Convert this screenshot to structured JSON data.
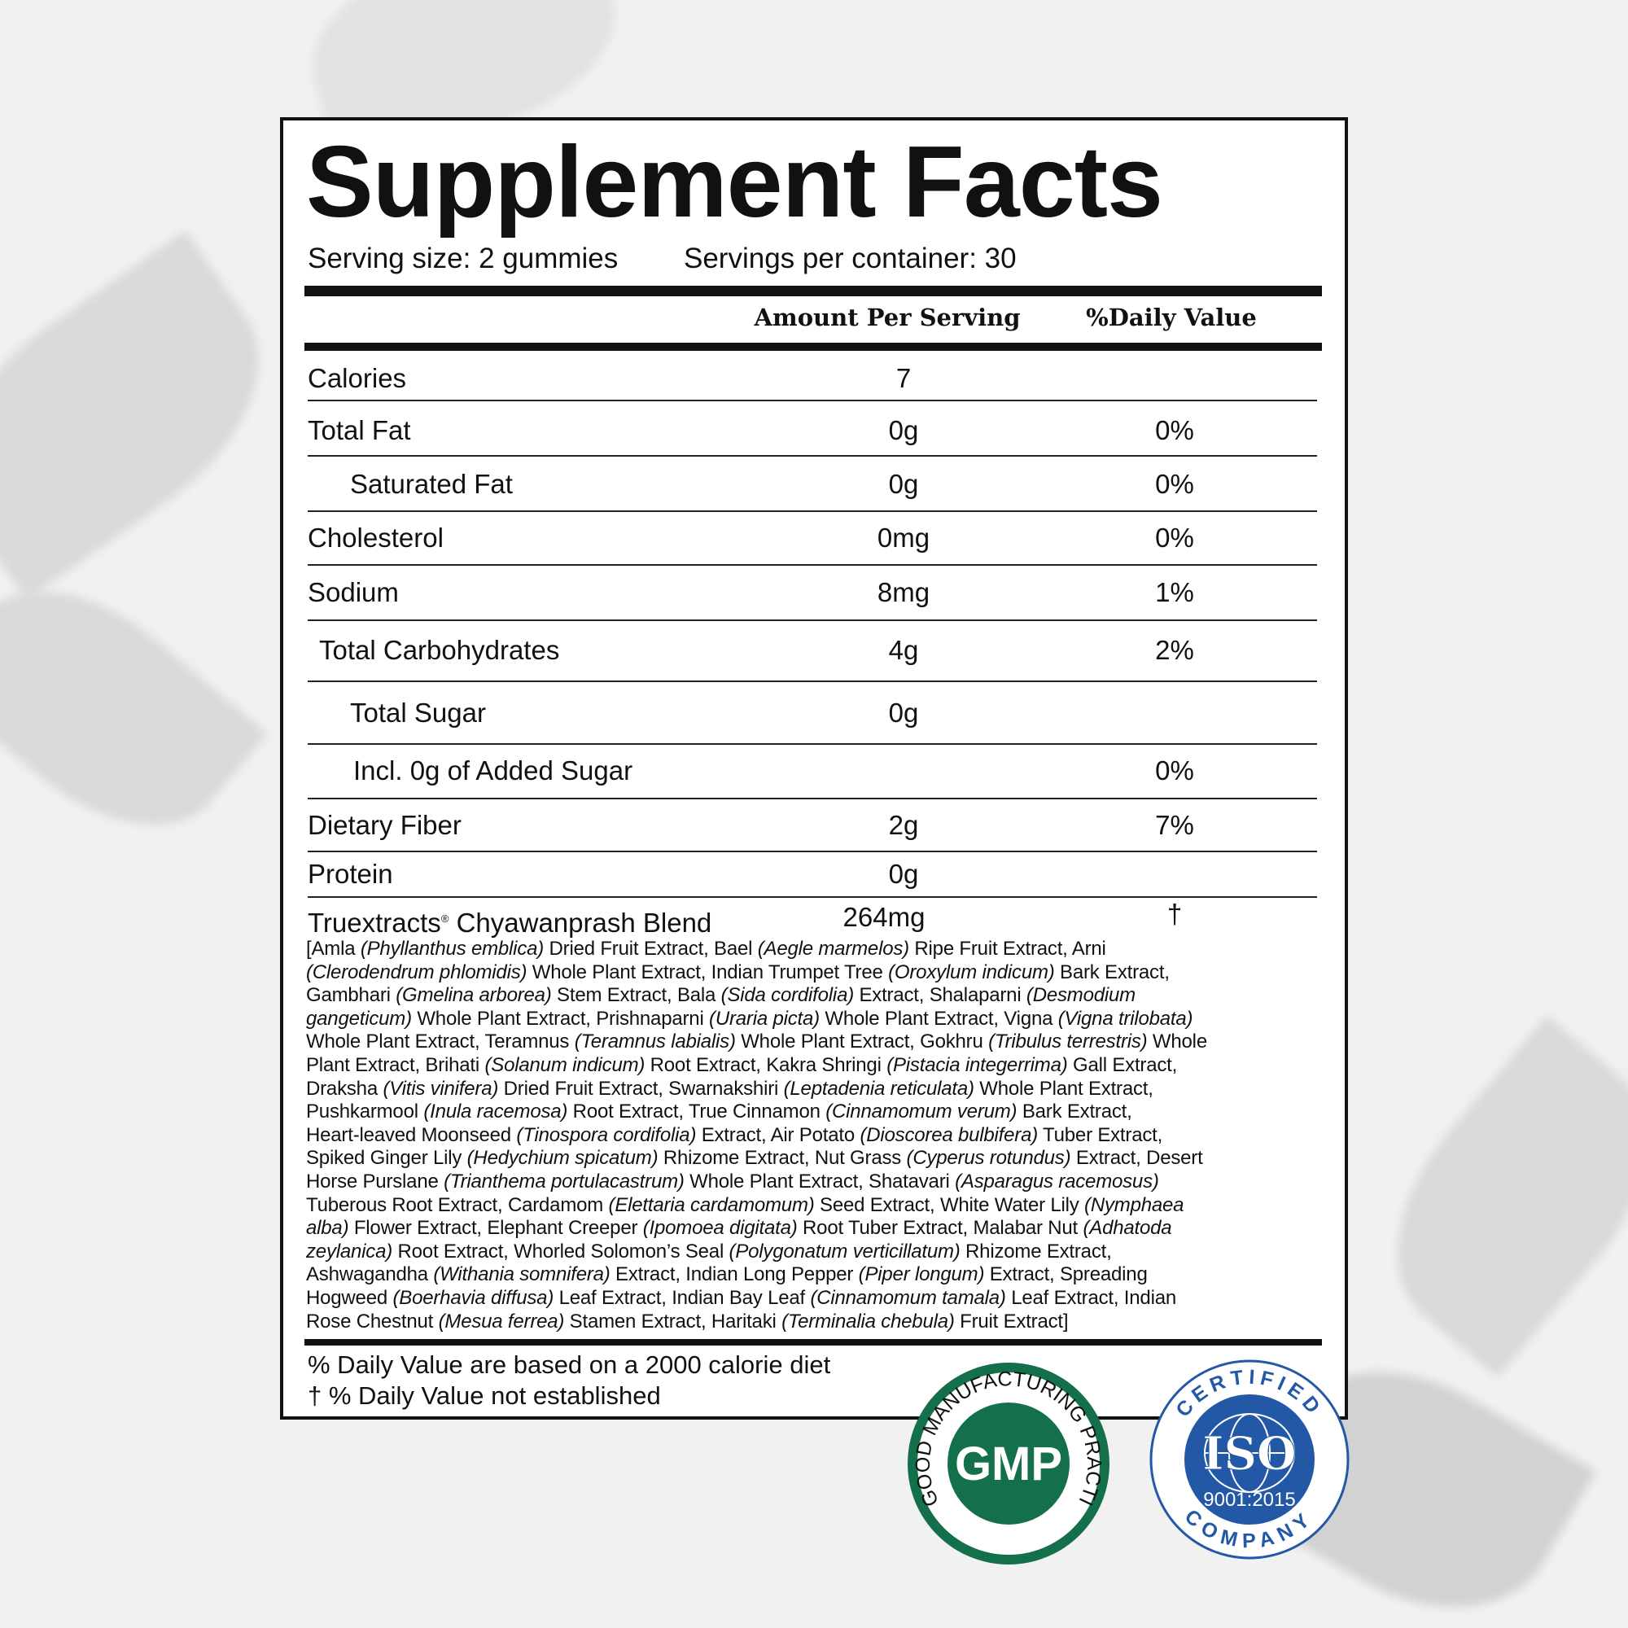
{
  "title": "Supplement Facts",
  "serving_size": "Serving size: 2 gummies",
  "servings_per_container": "Servings per container: 30",
  "headers": {
    "amount": "Amount Per Serving",
    "daily_value": "%Daily Value"
  },
  "rows": [
    {
      "label": "Calories",
      "amount": "7",
      "dv": ""
    },
    {
      "label": "Total Fat",
      "amount": "0g",
      "dv": "0%"
    },
    {
      "label": "Saturated Fat",
      "amount": "0g",
      "dv": "0%"
    },
    {
      "label": "Cholesterol",
      "amount": "0mg",
      "dv": "0%"
    },
    {
      "label": "Sodium",
      "amount": "8mg",
      "dv": "1%"
    },
    {
      "label": "Total Carbohydrates",
      "amount": "4g",
      "dv": "2%"
    },
    {
      "label": "Total Sugar",
      "amount": "0g",
      "dv": ""
    },
    {
      "label": "Incl. 0g of Added Sugar",
      "amount": "",
      "dv": "0%"
    },
    {
      "label": "Dietary Fiber",
      "amount": "2g",
      "dv": "7%"
    },
    {
      "label": "Protein",
      "amount": "0g",
      "dv": ""
    }
  ],
  "blend": {
    "label": "Truextracts",
    "reg": "®",
    "name": "Chyawanprash Blend",
    "amount": "264mg",
    "dv": "†"
  },
  "ingredients": [
    [
      [
        "[Amla ",
        0
      ],
      [
        "(Phyllanthus emblica)",
        1
      ],
      [
        " Dried Fruit Extract, Bael ",
        0
      ],
      [
        "(Aegle marmelos)",
        1
      ],
      [
        " Ripe Fruit Extract, Arni",
        0
      ]
    ],
    [
      [
        "(Clerodendrum phlomidis)",
        1
      ],
      [
        " Whole Plant Extract, Indian Trumpet Tree ",
        0
      ],
      [
        "(Oroxylum indicum)",
        1
      ],
      [
        " Bark Extract,",
        0
      ]
    ],
    [
      [
        "Gambhari ",
        0
      ],
      [
        "(Gmelina arborea)",
        1
      ],
      [
        " Stem Extract, Bala ",
        0
      ],
      [
        "(Sida cordifolia)",
        1
      ],
      [
        " Extract, Shalaparni ",
        0
      ],
      [
        "(Desmodium",
        1
      ]
    ],
    [
      [
        "gangeticum)",
        1
      ],
      [
        " Whole Plant Extract, Prishnaparni ",
        0
      ],
      [
        "(Uraria picta)",
        1
      ],
      [
        " Whole Plant Extract, Vigna ",
        0
      ],
      [
        "(Vigna trilobata)",
        1
      ]
    ],
    [
      [
        "Whole Plant Extract, Teramnus ",
        0
      ],
      [
        "(Teramnus labialis)",
        1
      ],
      [
        " Whole Plant Extract, Gokhru ",
        0
      ],
      [
        "(Tribulus terrestris)",
        1
      ],
      [
        " Whole",
        0
      ]
    ],
    [
      [
        "Plant Extract, Brihati ",
        0
      ],
      [
        "(Solanum indicum)",
        1
      ],
      [
        " Root Extract, Kakra Shringi ",
        0
      ],
      [
        "(Pistacia integerrima)",
        1
      ],
      [
        " Gall Extract,",
        0
      ]
    ],
    [
      [
        "Draksha ",
        0
      ],
      [
        "(Vitis vinifera)",
        1
      ],
      [
        " Dried Fruit Extract, Swarnakshiri ",
        0
      ],
      [
        "(Leptadenia reticulata)",
        1
      ],
      [
        " Whole Plant Extract,",
        0
      ]
    ],
    [
      [
        "Pushkarmool ",
        0
      ],
      [
        "(Inula racemosa)",
        1
      ],
      [
        " Root Extract, True Cinnamon ",
        0
      ],
      [
        "(Cinnamomum verum)",
        1
      ],
      [
        " Bark Extract,",
        0
      ]
    ],
    [
      [
        "Heart-leaved Moonseed ",
        0
      ],
      [
        "(Tinospora cordifolia)",
        1
      ],
      [
        " Extract, Air Potato ",
        0
      ],
      [
        "(Dioscorea bulbifera)",
        1
      ],
      [
        " Tuber Extract,",
        0
      ]
    ],
    [
      [
        "Spiked Ginger Lily ",
        0
      ],
      [
        "(Hedychium spicatum)",
        1
      ],
      [
        " Rhizome Extract, Nut Grass ",
        0
      ],
      [
        "(Cyperus rotundus)",
        1
      ],
      [
        " Extract, Desert",
        0
      ]
    ],
    [
      [
        "Horse Purslane ",
        0
      ],
      [
        "(Trianthema portulacastrum)",
        1
      ],
      [
        " Whole Plant Extract, Shatavari ",
        0
      ],
      [
        "(Asparagus racemosus)",
        1
      ]
    ],
    [
      [
        "Tuberous Root Extract, Cardamom ",
        0
      ],
      [
        "(Elettaria cardamomum)",
        1
      ],
      [
        " Seed Extract, White Water Lily ",
        0
      ],
      [
        "(Nymphaea",
        1
      ]
    ],
    [
      [
        "alba)",
        1
      ],
      [
        " Flower Extract, Elephant Creeper ",
        0
      ],
      [
        "(Ipomoea digitata)",
        1
      ],
      [
        " Root Tuber Extract, Malabar Nut ",
        0
      ],
      [
        "(Adhatoda",
        1
      ]
    ],
    [
      [
        "zeylanica)",
        1
      ],
      [
        " Root Extract, Whorled Solomon’s Seal ",
        0
      ],
      [
        "(Polygonatum verticillatum)",
        1
      ],
      [
        " Rhizome Extract,",
        0
      ]
    ],
    [
      [
        "Ashwagandha ",
        0
      ],
      [
        "(Withania somnifera)",
        1
      ],
      [
        " Extract, Indian Long Pepper ",
        0
      ],
      [
        "(Piper longum)",
        1
      ],
      [
        " Extract, Spreading",
        0
      ]
    ],
    [
      [
        "Hogweed ",
        0
      ],
      [
        "(Boerhavia diffusa)",
        1
      ],
      [
        " Leaf Extract, Indian Bay Leaf ",
        0
      ],
      [
        "(Cinnamomum tamala)",
        1
      ],
      [
        " Leaf Extract, Indian",
        0
      ]
    ],
    [
      [
        "Rose Chestnut ",
        0
      ],
      [
        "(Mesua ferrea)",
        1
      ],
      [
        " Stamen Extract, Haritaki ",
        0
      ],
      [
        "(Terminalia chebula)",
        1
      ],
      [
        " Fruit Extract]",
        0
      ]
    ]
  ],
  "footnotes": [
    "% Daily Value are based on a 2000 calorie diet",
    "† % Daily Value not established"
  ],
  "badges": {
    "gmp": {
      "center": "GMP",
      "ring": "GOOD MANUFACTURING PRACTICE",
      "color": "#13704a"
    },
    "iso": {
      "center": "ISO",
      "top": "CERTIFIED",
      "bottom": "COMPANY",
      "standard": "9001:2015",
      "color": "#2358a6"
    }
  }
}
